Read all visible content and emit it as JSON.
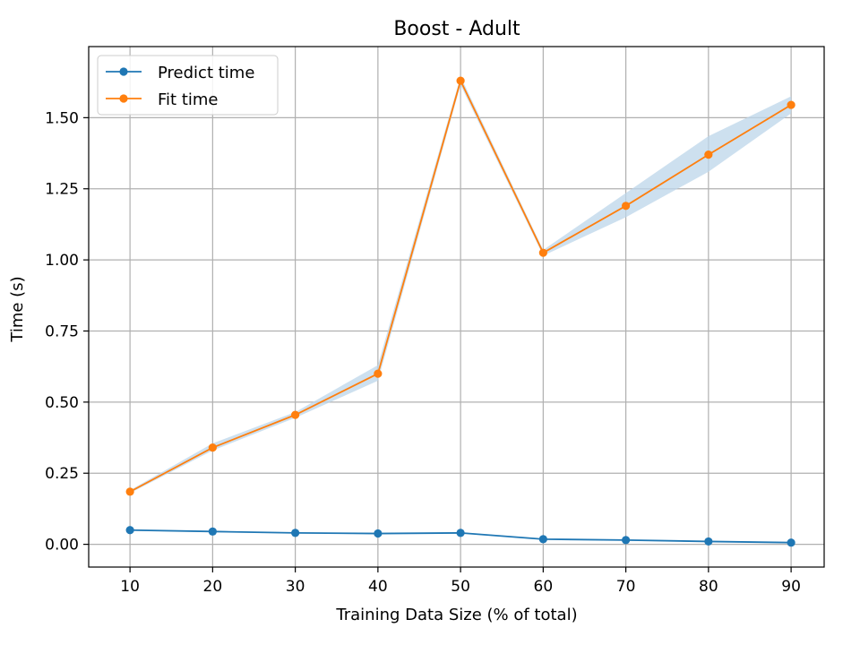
{
  "chart_data": {
    "type": "line",
    "title": "Boost - Adult",
    "xlabel": "Training Data Size (% of total)",
    "ylabel": "Time (s)",
    "x": [
      10,
      20,
      30,
      40,
      50,
      60,
      70,
      80,
      90
    ],
    "xlim": [
      5,
      94
    ],
    "ylim": [
      -0.08,
      1.75
    ],
    "xticks": [
      10,
      20,
      30,
      40,
      50,
      60,
      70,
      80,
      90
    ],
    "yticks": [
      0.0,
      0.25,
      0.5,
      0.75,
      1.0,
      1.25,
      1.5
    ],
    "ytick_labels": [
      "0.00",
      "0.25",
      "0.50",
      "0.75",
      "1.00",
      "1.25",
      "1.50"
    ],
    "grid": true,
    "legend_position": "top-left",
    "series": [
      {
        "name": "Predict time",
        "color": "#1f77b4",
        "values": [
          0.05,
          0.045,
          0.04,
          0.038,
          0.04,
          0.018,
          0.015,
          0.01,
          0.006
        ],
        "band_lower": [
          0.048,
          0.043,
          0.038,
          0.036,
          0.038,
          0.016,
          0.013,
          0.008,
          0.004
        ],
        "band_upper": [
          0.052,
          0.047,
          0.042,
          0.04,
          0.042,
          0.02,
          0.017,
          0.012,
          0.008
        ]
      },
      {
        "name": "Fit time",
        "color": "#ff7f0e",
        "values": [
          0.185,
          0.34,
          0.455,
          0.6,
          1.63,
          1.025,
          1.19,
          1.37,
          1.545
        ],
        "band_color": "#bcd5ea",
        "band_lower": [
          0.18,
          0.33,
          0.445,
          0.575,
          1.615,
          1.015,
          1.15,
          1.31,
          1.515
        ],
        "band_upper": [
          0.19,
          0.355,
          0.465,
          0.63,
          1.645,
          1.035,
          1.235,
          1.435,
          1.575
        ]
      }
    ]
  }
}
